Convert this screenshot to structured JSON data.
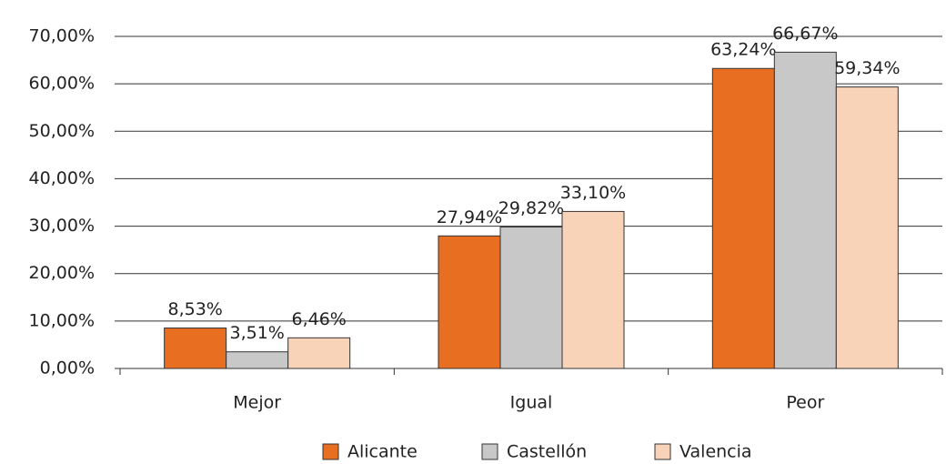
{
  "chart_data": {
    "type": "bar",
    "categories": [
      "Mejor",
      "Igual",
      "Peor"
    ],
    "series": [
      {
        "name": "Alicante",
        "color": "#e86e22",
        "values": [
          8.53,
          27.94,
          63.24
        ],
        "value_labels": [
          "8,53%",
          "27,94%",
          "63,24%"
        ]
      },
      {
        "name": "Castellón",
        "color": "#c8c8c9",
        "values": [
          3.51,
          29.82,
          66.67
        ],
        "value_labels": [
          "3,51%",
          "29,82%",
          "66,67%"
        ]
      },
      {
        "name": "Valencia",
        "color": "#f9d3b8",
        "values": [
          6.46,
          33.1,
          59.34
        ],
        "value_labels": [
          "6,46%",
          "33,10%",
          "59,34%"
        ]
      }
    ],
    "ylim": [
      0,
      70
    ],
    "yticks": [
      {
        "value": 0,
        "label": "0,00%"
      },
      {
        "value": 10,
        "label": "10,00%"
      },
      {
        "value": 20,
        "label": "20,00%"
      },
      {
        "value": 30,
        "label": "30,00%"
      },
      {
        "value": 40,
        "label": "40,00%"
      },
      {
        "value": 50,
        "label": "50,00%"
      },
      {
        "value": 60,
        "label": "60,00%"
      },
      {
        "value": 70,
        "label": "70,00%"
      }
    ],
    "grid": true,
    "legend": "bottom"
  }
}
